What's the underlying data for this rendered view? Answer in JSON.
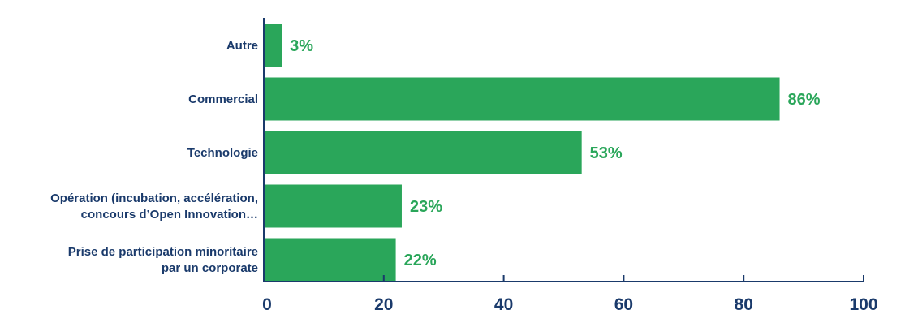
{
  "colors": {
    "bar": "#2aa65a",
    "value_label": "#2aa65a",
    "axis": "#1a3a6b",
    "text": "#1a3a6b",
    "background": "#ffffff"
  },
  "chart_data": {
    "type": "bar",
    "orientation": "horizontal",
    "title": "",
    "xlabel": "",
    "ylabel": "",
    "categories": [
      [
        "Autre"
      ],
      [
        "Commercial"
      ],
      [
        "Technologie"
      ],
      [
        "Opération (incubation, accélération,",
        "concours d’Open Innovation…"
      ],
      [
        "Prise de participation minoritaire",
        "par un corporate"
      ]
    ],
    "values": [
      3,
      86,
      53,
      23,
      22
    ],
    "value_labels": [
      "3%",
      "86%",
      "53%",
      "23%",
      "22%"
    ],
    "xlim": [
      0,
      100
    ],
    "x_ticks": [
      0,
      20,
      40,
      60,
      80,
      100
    ],
    "x_tick_labels": [
      "0",
      "20",
      "40",
      "60",
      "80",
      "100"
    ],
    "grid": false,
    "legend": "none"
  }
}
